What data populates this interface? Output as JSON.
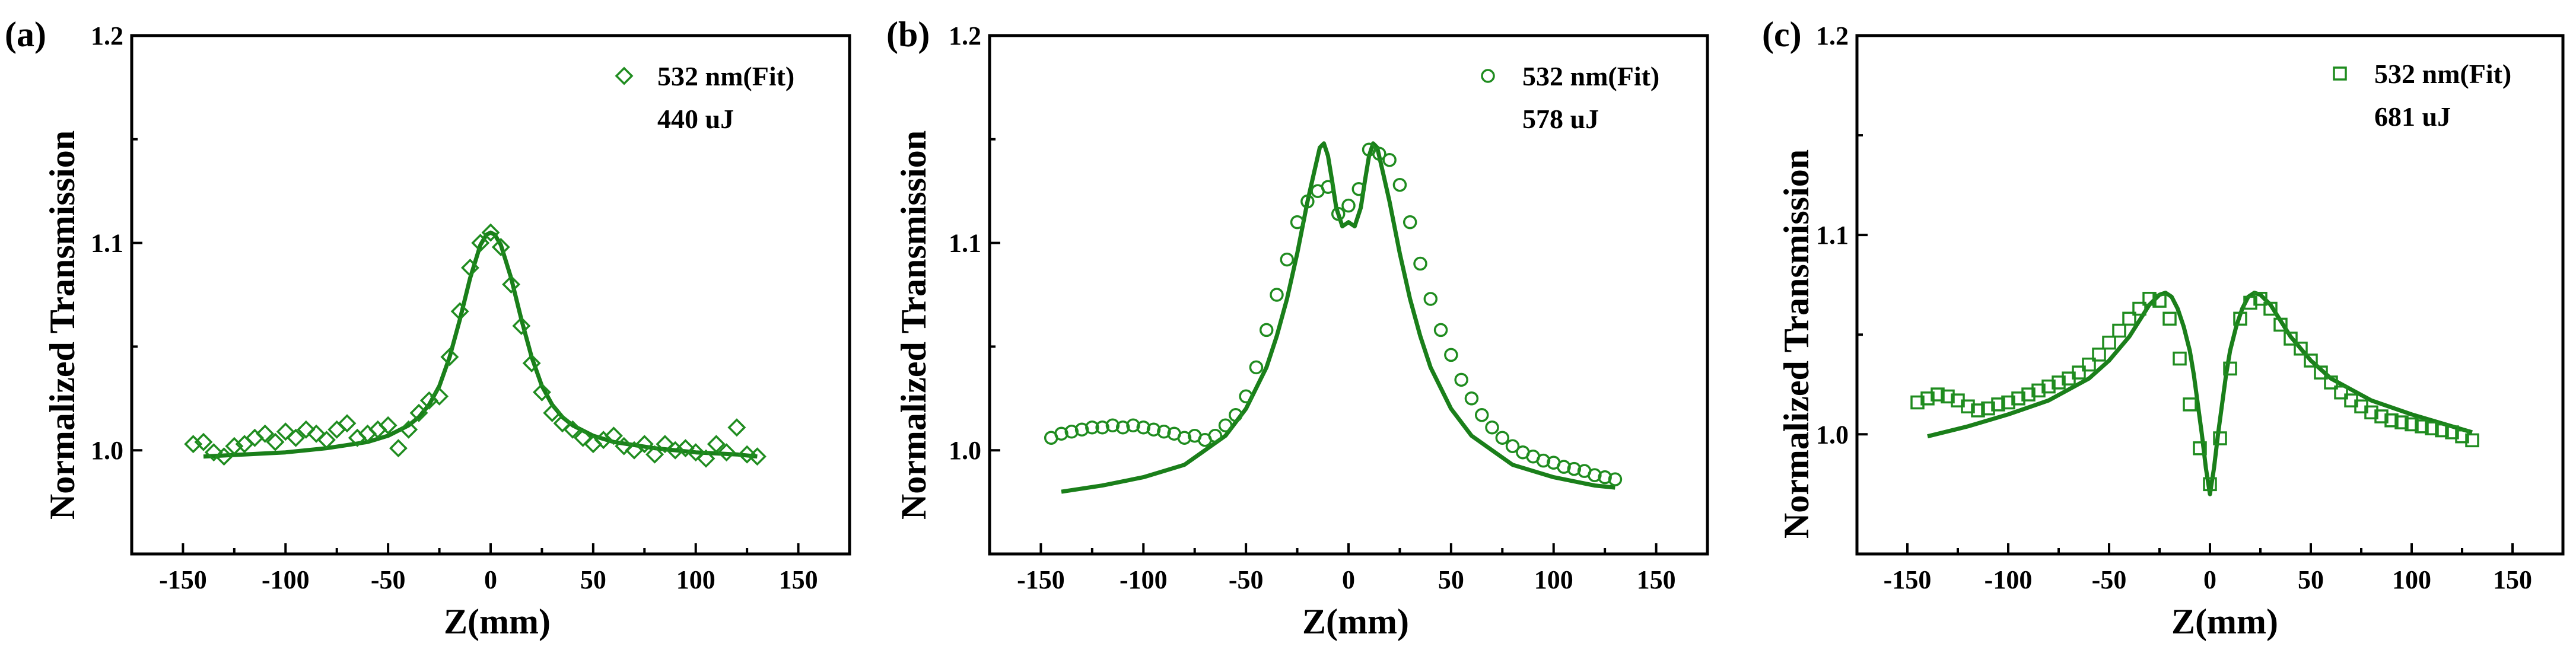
{
  "colors": {
    "data": "#1f8c1f",
    "fit": "#1a7f1a",
    "axis": "#000000"
  },
  "chart_data": [
    {
      "type": "scatter",
      "panel_label": "(a)",
      "marker": "diamond",
      "legend": {
        "entry": "532 nm(Fit)",
        "note": "440 uJ",
        "placement": "top-right"
      },
      "xlabel": "Z(mm)",
      "ylabel": "Normalized Transmission",
      "xlim": [
        -175,
        175
      ],
      "ylim": [
        0.95,
        1.2
      ],
      "xticks": [
        -150,
        -100,
        -50,
        0,
        50,
        100,
        150
      ],
      "yticks": [
        1.0,
        1.1,
        1.2
      ],
      "ytick_labels": [
        "1.0",
        "1.1",
        "1.2"
      ],
      "series": [
        {
          "name": "532 nm data",
          "x": [
            -145,
            -140,
            -135,
            -130,
            -125,
            -120,
            -115,
            -110,
            -105,
            -100,
            -95,
            -90,
            -85,
            -80,
            -75,
            -70,
            -65,
            -60,
            -55,
            -50,
            -45,
            -40,
            -35,
            -30,
            -25,
            -20,
            -15,
            -10,
            -5,
            0,
            5,
            10,
            15,
            20,
            25,
            30,
            35,
            40,
            45,
            50,
            55,
            60,
            65,
            70,
            75,
            80,
            85,
            90,
            95,
            100,
            105,
            110,
            115,
            120,
            125,
            130
          ],
          "y": [
            1.003,
            1.004,
            0.999,
            0.997,
            1.002,
            1.003,
            1.006,
            1.008,
            1.004,
            1.009,
            1.006,
            1.01,
            1.008,
            1.005,
            1.01,
            1.013,
            1.006,
            1.008,
            1.01,
            1.012,
            1.001,
            1.01,
            1.018,
            1.024,
            1.026,
            1.045,
            1.067,
            1.088,
            1.1,
            1.105,
            1.098,
            1.08,
            1.06,
            1.042,
            1.028,
            1.018,
            1.013,
            1.01,
            1.006,
            1.003,
            1.005,
            1.007,
            1.002,
            1.0,
            1.003,
            0.998,
            1.003,
            1.0,
            1.001,
            0.999,
            0.996,
            1.003,
            0.999,
            1.011,
            0.998,
            0.997
          ]
        },
        {
          "name": "532 nm fit",
          "x": [
            -140,
            -120,
            -100,
            -80,
            -60,
            -50,
            -40,
            -35,
            -30,
            -25,
            -20,
            -15,
            -10,
            -5,
            -2,
            0,
            2,
            5,
            10,
            15,
            20,
            25,
            30,
            35,
            40,
            50,
            60,
            80,
            100,
            120,
            130
          ],
          "y": [
            0.997,
            0.998,
            0.999,
            1.001,
            1.004,
            1.007,
            1.012,
            1.016,
            1.022,
            1.031,
            1.045,
            1.063,
            1.083,
            1.099,
            1.104,
            1.105,
            1.104,
            1.099,
            1.083,
            1.063,
            1.045,
            1.031,
            1.022,
            1.016,
            1.012,
            1.007,
            1.004,
            1.001,
            0.999,
            0.998,
            0.997
          ]
        }
      ]
    },
    {
      "type": "scatter",
      "panel_label": "(b)",
      "marker": "circle",
      "legend": {
        "entry": "532 nm(Fit)",
        "note": "578 uJ",
        "placement": "top-right"
      },
      "xlabel": "Z(mm)",
      "ylabel": "Normalized Transmission",
      "xlim": [
        -175,
        175
      ],
      "ylim": [
        0.95,
        1.2
      ],
      "xticks": [
        -150,
        -100,
        -50,
        0,
        50,
        100,
        150
      ],
      "yticks": [
        1.0,
        1.1,
        1.2
      ],
      "ytick_labels": [
        "1.0",
        "1.1",
        "1.2"
      ],
      "series": [
        {
          "name": "532 nm data",
          "x": [
            -145,
            -140,
            -135,
            -130,
            -125,
            -120,
            -115,
            -110,
            -105,
            -100,
            -95,
            -90,
            -85,
            -80,
            -75,
            -70,
            -65,
            -60,
            -55,
            -50,
            -45,
            -40,
            -35,
            -30,
            -25,
            -20,
            -15,
            -10,
            -5,
            0,
            5,
            10,
            15,
            20,
            25,
            30,
            35,
            40,
            45,
            50,
            55,
            60,
            65,
            70,
            75,
            80,
            85,
            90,
            95,
            100,
            105,
            110,
            115,
            120,
            125,
            130
          ],
          "y": [
            1.006,
            1.008,
            1.009,
            1.01,
            1.011,
            1.011,
            1.012,
            1.011,
            1.012,
            1.011,
            1.01,
            1.009,
            1.008,
            1.006,
            1.007,
            1.005,
            1.007,
            1.012,
            1.017,
            1.026,
            1.04,
            1.058,
            1.075,
            1.092,
            1.11,
            1.12,
            1.125,
            1.127,
            1.114,
            1.118,
            1.126,
            1.145,
            1.143,
            1.14,
            1.128,
            1.11,
            1.09,
            1.073,
            1.058,
            1.046,
            1.034,
            1.025,
            1.017,
            1.011,
            1.006,
            1.002,
            0.999,
            0.997,
            0.995,
            0.994,
            0.992,
            0.991,
            0.99,
            0.988,
            0.987,
            0.986
          ]
        },
        {
          "name": "532 nm fit",
          "x": [
            -140,
            -120,
            -100,
            -80,
            -60,
            -50,
            -40,
            -35,
            -30,
            -25,
            -20,
            -17,
            -14,
            -12,
            -10,
            -8,
            -6,
            -3,
            0,
            3,
            6,
            8,
            10,
            12,
            14,
            17,
            20,
            25,
            30,
            35,
            40,
            50,
            60,
            80,
            100,
            120,
            130
          ],
          "y": [
            0.98,
            0.983,
            0.987,
            0.993,
            1.007,
            1.02,
            1.04,
            1.055,
            1.073,
            1.095,
            1.12,
            1.133,
            1.146,
            1.148,
            1.142,
            1.13,
            1.117,
            1.108,
            1.11,
            1.108,
            1.117,
            1.13,
            1.142,
            1.148,
            1.146,
            1.133,
            1.12,
            1.095,
            1.073,
            1.055,
            1.04,
            1.02,
            1.007,
            0.993,
            0.987,
            0.983,
            0.982
          ]
        }
      ]
    },
    {
      "type": "scatter",
      "panel_label": "(c)",
      "marker": "square",
      "legend": {
        "entry": "532 nm(Fit)",
        "note": "681 uJ",
        "placement": "top-right"
      },
      "xlabel": "Z(mm)",
      "ylabel": "Normalized Transmission",
      "xlim": [
        -175,
        175
      ],
      "ylim": [
        0.94,
        1.2
      ],
      "xticks": [
        -150,
        -100,
        -50,
        0,
        50,
        100,
        150
      ],
      "yticks": [
        1.0,
        1.1,
        1.2
      ],
      "ytick_labels": [
        "1.0",
        "1.1",
        "1.2"
      ],
      "series": [
        {
          "name": "532 nm data",
          "x": [
            -145,
            -140,
            -135,
            -130,
            -125,
            -120,
            -115,
            -110,
            -105,
            -100,
            -95,
            -90,
            -85,
            -80,
            -75,
            -70,
            -65,
            -60,
            -55,
            -50,
            -45,
            -40,
            -35,
            -30,
            -25,
            -20,
            -15,
            -10,
            -5,
            0,
            5,
            10,
            15,
            20,
            25,
            30,
            35,
            40,
            45,
            50,
            55,
            60,
            65,
            70,
            75,
            80,
            85,
            90,
            95,
            100,
            105,
            110,
            115,
            120,
            125,
            130
          ],
          "y": [
            1.016,
            1.018,
            1.02,
            1.019,
            1.017,
            1.014,
            1.012,
            1.013,
            1.015,
            1.016,
            1.018,
            1.02,
            1.022,
            1.024,
            1.026,
            1.028,
            1.031,
            1.035,
            1.04,
            1.046,
            1.052,
            1.058,
            1.063,
            1.068,
            1.067,
            1.058,
            1.038,
            1.015,
            0.993,
            0.975,
            0.998,
            1.033,
            1.058,
            1.066,
            1.068,
            1.063,
            1.055,
            1.048,
            1.043,
            1.037,
            1.031,
            1.026,
            1.021,
            1.017,
            1.014,
            1.011,
            1.009,
            1.007,
            1.006,
            1.005,
            1.004,
            1.003,
            1.002,
            1.001,
            0.999,
            0.997
          ]
        },
        {
          "name": "532 nm fit",
          "x": [
            -140,
            -120,
            -100,
            -80,
            -60,
            -50,
            -40,
            -35,
            -30,
            -25,
            -22,
            -19,
            -16,
            -13,
            -10,
            -8,
            -6,
            -4,
            -2,
            0,
            2,
            4,
            6,
            8,
            10,
            13,
            16,
            19,
            22,
            25,
            30,
            35,
            40,
            50,
            60,
            80,
            100,
            120,
            130
          ],
          "y": [
            0.999,
            1.004,
            1.01,
            1.017,
            1.028,
            1.037,
            1.049,
            1.057,
            1.065,
            1.07,
            1.071,
            1.069,
            1.063,
            1.054,
            1.042,
            1.03,
            1.015,
            1.0,
            0.983,
            0.97,
            0.983,
            1.0,
            1.015,
            1.03,
            1.042,
            1.054,
            1.063,
            1.069,
            1.071,
            1.07,
            1.065,
            1.057,
            1.049,
            1.037,
            1.028,
            1.017,
            1.01,
            1.004,
            1.001
          ]
        }
      ]
    }
  ]
}
